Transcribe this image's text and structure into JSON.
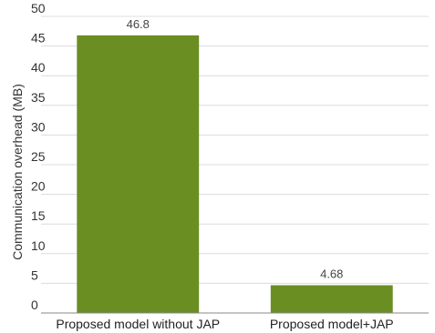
{
  "chart_data": {
    "type": "bar",
    "title": "",
    "xlabel": "",
    "ylabel": "Communication overhead (MB)",
    "categories": [
      "Proposed model without JAP",
      "Proposed model+JAP"
    ],
    "values": [
      46.8,
      4.68
    ],
    "data_labels": [
      "46.8",
      "4.68"
    ],
    "ylim": [
      0,
      50
    ],
    "yticks": [
      0,
      5,
      10,
      15,
      20,
      25,
      30,
      35,
      40,
      45,
      50
    ],
    "grid": true,
    "legend": "none",
    "bar_color": "#6b8e23"
  }
}
